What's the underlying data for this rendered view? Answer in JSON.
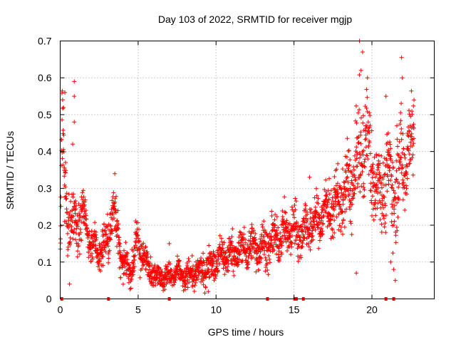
{
  "chart_data": {
    "type": "scatter",
    "title": "Day 103 of 2022, SRMTID for receiver mgjp",
    "xlabel": "GPS time / hours",
    "ylabel": "SRMTID / TECUs",
    "xlim": [
      0,
      24
    ],
    "ylim": [
      0,
      0.7
    ],
    "x_ticks": [
      0,
      5,
      10,
      15,
      20
    ],
    "x_tick_labels": [
      "0",
      "5",
      "10",
      "15",
      "20"
    ],
    "y_ticks": [
      0,
      0.1,
      0.2,
      0.3,
      0.4,
      0.5,
      0.6,
      0.7
    ],
    "y_tick_labels": [
      "0",
      "0.1",
      "0.2",
      "0.3",
      "0.4",
      "0.5",
      "0.6",
      "0.7"
    ],
    "grid": true,
    "marker": "plus",
    "color": "#ff0000",
    "series": [
      {
        "name": "SRMTID",
        "profile": {
          "t": [
            0,
            0.1,
            0.3,
            0.6,
            1.0,
            1.5,
            2.0,
            2.5,
            3.0,
            3.4,
            3.6,
            4.0,
            4.5,
            5.0,
            5.5,
            6.0,
            6.5,
            7.0,
            7.5,
            8.0,
            8.5,
            9.0,
            9.5,
            10.0,
            10.5,
            11.0,
            11.5,
            12.0,
            12.5,
            13.0,
            13.5,
            14.0,
            14.5,
            15.0,
            15.5,
            16.0,
            16.5,
            17.0,
            17.5,
            18.0,
            18.5,
            19.0,
            19.3,
            19.6,
            20.0,
            20.5,
            21.0,
            21.5,
            22.0,
            22.5,
            22.7
          ],
          "center": [
            0.1,
            0.45,
            0.3,
            0.2,
            0.2,
            0.22,
            0.15,
            0.13,
            0.15,
            0.25,
            0.2,
            0.09,
            0.08,
            0.15,
            0.1,
            0.07,
            0.06,
            0.06,
            0.07,
            0.06,
            0.07,
            0.07,
            0.09,
            0.1,
            0.12,
            0.12,
            0.13,
            0.14,
            0.14,
            0.14,
            0.15,
            0.17,
            0.18,
            0.19,
            0.18,
            0.2,
            0.21,
            0.24,
            0.25,
            0.27,
            0.3,
            0.35,
            0.4,
            0.45,
            0.35,
            0.3,
            0.33,
            0.3,
            0.38,
            0.42,
            0.43
          ],
          "spread": [
            0.03,
            0.1,
            0.08,
            0.06,
            0.06,
            0.05,
            0.04,
            0.04,
            0.05,
            0.06,
            0.06,
            0.03,
            0.03,
            0.05,
            0.03,
            0.025,
            0.025,
            0.025,
            0.025,
            0.025,
            0.03,
            0.03,
            0.035,
            0.035,
            0.04,
            0.04,
            0.04,
            0.04,
            0.04,
            0.045,
            0.045,
            0.045,
            0.045,
            0.05,
            0.05,
            0.05,
            0.05,
            0.06,
            0.06,
            0.07,
            0.08,
            0.09,
            0.12,
            0.1,
            0.1,
            0.08,
            0.09,
            0.1,
            0.1,
            0.09,
            0.08
          ]
        },
        "outliers": [
          [
            19.2,
            0.7
          ],
          [
            19.4,
            0.67
          ],
          [
            21.9,
            0.655
          ],
          [
            0.9,
            0.59
          ],
          [
            21.95,
            0.6
          ],
          [
            0.3,
            0.56
          ],
          [
            0.9,
            0.55
          ],
          [
            0.9,
            0.48
          ],
          [
            0.8,
            0.42
          ],
          [
            19.3,
            0.62
          ],
          [
            20.9,
            0.55
          ],
          [
            21.6,
            0.47
          ],
          [
            22.7,
            0.54
          ],
          [
            3.5,
            0.34
          ],
          [
            19.0,
            0.07
          ],
          [
            21.5,
            0.05
          ],
          [
            21.4,
            0.08
          ],
          [
            0.6,
            0.04
          ],
          [
            7.0,
            0.15
          ],
          [
            9.5,
            0.02
          ],
          [
            16.0,
            0.33
          ],
          [
            21.2,
            0.1
          ]
        ],
        "point_count": 2200
      }
    ],
    "baseline_markers_x": [
      0.1,
      3.1,
      7.0,
      13.3,
      15.05,
      15.15,
      15.6,
      20.9,
      21.4
    ]
  }
}
